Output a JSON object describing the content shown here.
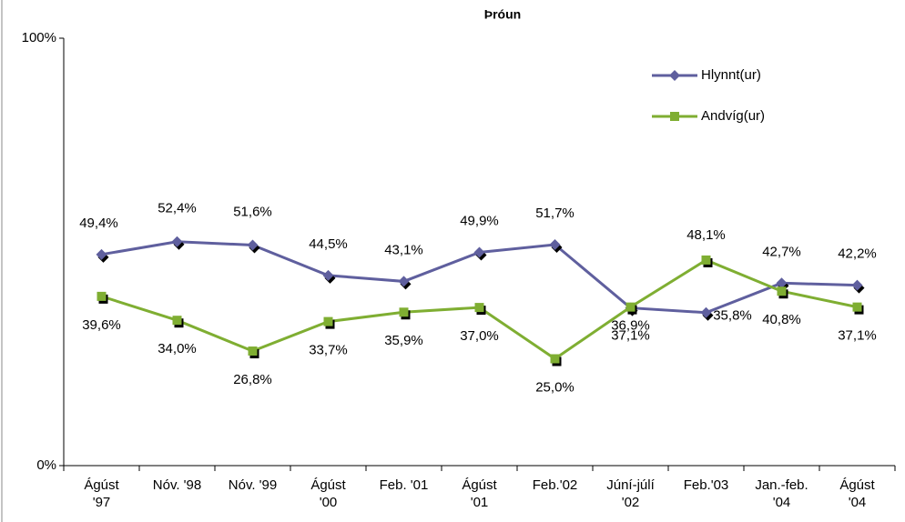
{
  "chart_data": {
    "type": "line",
    "title": "Þróun",
    "categories": [
      "Ágúst\n'97",
      "Nóv. '98",
      "Nóv. '99",
      "Ágúst\n'00",
      "Feb. '01",
      "Ágúst\n'01",
      "Feb.'02",
      "Júní-júlí\n'02",
      "Feb.'03",
      "Jan.-feb.\n'04",
      "Ágúst\n'04"
    ],
    "series": [
      {
        "name": "Hlynnt(ur)",
        "color": "#5f5f9e",
        "marker": "diamond",
        "values": [
          49.4,
          52.4,
          51.6,
          44.5,
          43.1,
          49.9,
          51.7,
          36.9,
          35.8,
          42.7,
          42.2
        ],
        "value_labels": [
          "49,4%",
          "52,4%",
          "51,6%",
          "44,5%",
          "43,1%",
          "49,9%",
          "51,7%",
          "36,9%",
          "35,8%",
          "42,7%",
          "42,2%"
        ]
      },
      {
        "name": "Andvíg(ur)",
        "color": "#7fae32",
        "marker": "square",
        "values": [
          39.6,
          34.0,
          26.8,
          33.7,
          35.9,
          37.0,
          25.0,
          37.1,
          48.1,
          40.8,
          37.1
        ],
        "value_labels": [
          "39,6%",
          "34,0%",
          "26,8%",
          "33,7%",
          "35,9%",
          "37,0%",
          "25,0%",
          "37,1%",
          "48,1%",
          "40,8%",
          "37,1%"
        ]
      }
    ],
    "ylim": [
      0,
      100
    ],
    "yticks": [
      {
        "value": 0,
        "label": "0%"
      },
      {
        "value": 100,
        "label": "100%"
      }
    ],
    "grid": false,
    "legend": "top-right"
  }
}
